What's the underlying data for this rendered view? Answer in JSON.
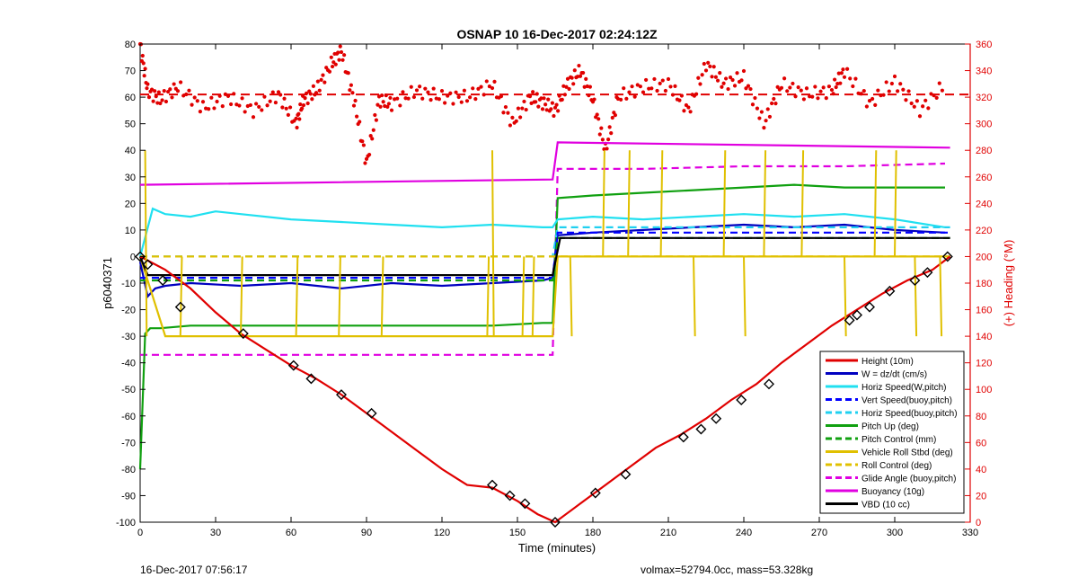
{
  "chart_data": {
    "type": "line",
    "title": "OSNAP 10 16-Dec-2017 02:24:12Z",
    "xlabel": "Time (minutes)",
    "ylabel": "p6040371",
    "y2label": "(+) Heading (°M)",
    "xlim": [
      0,
      330
    ],
    "ylim": [
      -100,
      80
    ],
    "y2lim": [
      0,
      360
    ],
    "xticks": [
      "0",
      "30",
      "60",
      "90",
      "120",
      "150",
      "180",
      "210",
      "240",
      "270",
      "300",
      "330"
    ],
    "yticks": [
      "-100",
      "-90",
      "-80",
      "-70",
      "-60",
      "-50",
      "-40",
      "-30",
      "-20",
      "-10",
      "0",
      "10",
      "20",
      "30",
      "40",
      "50",
      "60",
      "70",
      "80"
    ],
    "y2ticks": [
      "0",
      "20",
      "40",
      "60",
      "80",
      "100",
      "120",
      "140",
      "160",
      "180",
      "200",
      "220",
      "240",
      "260",
      "280",
      "300",
      "320",
      "340",
      "360"
    ],
    "grid": false,
    "legend_position": "lower-right",
    "series": [
      {
        "name": "Height (10m)",
        "color": "#e00000",
        "style": "solid",
        "x": [
          0,
          10,
          20,
          30,
          40,
          50,
          60,
          70,
          80,
          90,
          100,
          110,
          120,
          130,
          140,
          150,
          158,
          165,
          175,
          185,
          195,
          205,
          215,
          225,
          235,
          245,
          255,
          265,
          275,
          285,
          295,
          305,
          315,
          322
        ],
        "values": [
          0,
          -5,
          -12,
          -21,
          -29,
          -35,
          -41,
          -46,
          -52,
          -59,
          -66,
          -73,
          -80,
          -86,
          -87,
          -92,
          -97,
          -100,
          -93,
          -86,
          -79,
          -72,
          -67,
          -61,
          -54,
          -48,
          -40,
          -33,
          -26,
          -20,
          -14,
          -9,
          -5,
          0
        ]
      },
      {
        "name": "W = dz/dt (cm/s)",
        "color": "#0000c0",
        "style": "solid",
        "x": [
          0,
          3,
          6,
          10,
          20,
          40,
          60,
          80,
          100,
          120,
          140,
          160,
          164,
          166,
          180,
          200,
          220,
          240,
          260,
          280,
          300,
          320
        ],
        "values": [
          -2,
          -15,
          -12,
          -11,
          -10,
          -11,
          -10,
          -12,
          -10,
          -11,
          -10,
          -9,
          -8,
          8,
          9,
          10,
          11,
          12,
          11,
          12,
          10,
          9
        ]
      },
      {
        "name": "Horiz Speed(W,pitch)",
        "color": "#20e0f0",
        "style": "solid",
        "x": [
          0,
          5,
          10,
          20,
          30,
          40,
          60,
          80,
          100,
          120,
          140,
          160,
          164,
          166,
          180,
          200,
          220,
          240,
          260,
          280,
          300,
          320
        ],
        "values": [
          0,
          18,
          16,
          15,
          17,
          16,
          14,
          13,
          12,
          11,
          12,
          11,
          11,
          14,
          15,
          14,
          15,
          16,
          15,
          16,
          14,
          11
        ]
      },
      {
        "name": "Vert Speed(buoy,pitch)",
        "color": "#0000ff",
        "style": "dashed",
        "x": [
          0,
          164,
          166,
          322
        ],
        "values": [
          -8,
          -8,
          9,
          9
        ]
      },
      {
        "name": "Horiz Speed(buoy,pitch)",
        "color": "#20d0f0",
        "style": "dashed",
        "x": [
          0,
          164,
          166,
          322
        ],
        "values": [
          0,
          0,
          11,
          11
        ]
      },
      {
        "name": "Pitch Up (deg)",
        "color": "#10a010",
        "style": "solid",
        "x": [
          0,
          2,
          4,
          8,
          20,
          40,
          60,
          80,
          100,
          120,
          140,
          160,
          164,
          166,
          180,
          200,
          220,
          240,
          260,
          280,
          300,
          320
        ],
        "values": [
          -80,
          -29,
          -27,
          -27,
          -26,
          -26,
          -26,
          -26,
          -26,
          -26,
          -26,
          -25,
          -25,
          22,
          23,
          24,
          25,
          26,
          27,
          26,
          26,
          26
        ]
      },
      {
        "name": "Pitch Control (mm)",
        "color": "#10a010",
        "style": "dashed",
        "x": [
          0,
          164,
          166,
          322
        ],
        "values": [
          -9,
          -9,
          7,
          7
        ]
      },
      {
        "name": "Vehicle Roll Stbd (deg)",
        "color": "#e0c000",
        "style": "solid",
        "x": [
          0,
          10,
          20,
          40,
          60,
          80,
          100,
          120,
          140,
          164,
          166,
          180,
          200,
          220,
          240,
          260,
          280,
          300,
          322
        ],
        "values": [
          0,
          -30,
          -30,
          -30,
          -30,
          -30,
          -30,
          -30,
          -30,
          -30,
          0,
          0,
          0,
          0,
          0,
          0,
          0,
          0,
          0
        ]
      },
      {
        "name": "Roll Control (deg)",
        "color": "#e0c000",
        "style": "dashed",
        "x": [
          0,
          164,
          166,
          322
        ],
        "values": [
          0,
          0,
          0,
          0
        ]
      },
      {
        "name": "Glide Angle (buoy,pitch)",
        "color": "#e000e0",
        "style": "dashed",
        "x": [
          0,
          20,
          60,
          100,
          140,
          164,
          166,
          200,
          240,
          280,
          320
        ],
        "values": [
          -37,
          -37,
          -37,
          -37,
          -37,
          -37,
          33,
          33,
          34,
          34,
          35
        ]
      },
      {
        "name": "Buoyancy (10g)",
        "color": "#e000e0",
        "style": "solid",
        "x": [
          0,
          164,
          166,
          322
        ],
        "values": [
          27,
          29,
          43,
          41
        ]
      },
      {
        "name": "VBD (10 cc)",
        "color": "#000000",
        "style": "solid",
        "x": [
          0,
          3,
          164,
          167,
          322
        ],
        "values": [
          0,
          -7,
          -7,
          7,
          7
        ]
      }
    ],
    "heading": {
      "color": "#e00000",
      "x": [
        0,
        3,
        8,
        15,
        25,
        35,
        45,
        55,
        62,
        65,
        70,
        76,
        80,
        85,
        90,
        95,
        100,
        110,
        120,
        130,
        140,
        148,
        155,
        160,
        165,
        170,
        175,
        180,
        185,
        190,
        200,
        210,
        218,
        225,
        232,
        240,
        248,
        255,
        265,
        275,
        280,
        290,
        300,
        310,
        320
      ],
      "values": [
        360,
        325,
        318,
        328,
        312,
        320,
        310,
        322,
        300,
        318,
        325,
        345,
        355,
        318,
        270,
        318,
        315,
        325,
        320,
        320,
        330,
        300,
        320,
        316,
        310,
        330,
        340,
        318,
        280,
        320,
        328,
        330,
        310,
        345,
        330,
        335,
        300,
        330,
        322,
        325,
        340,
        315,
        332,
        310,
        330
      ]
    },
    "heading_ref": 322
  },
  "footer": {
    "timestamp": "16-Dec-2017 07:56:17",
    "stats": "volmax=52794.0cc, mass=53.328kg"
  }
}
